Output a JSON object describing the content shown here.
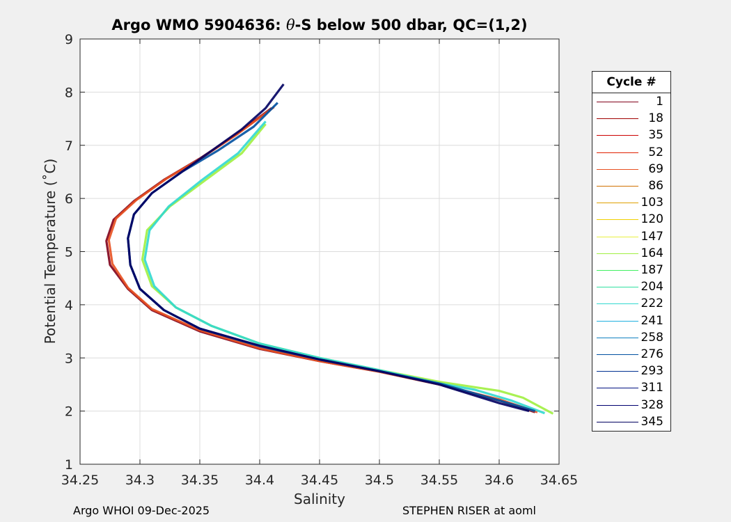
{
  "figure": {
    "title_prefix": "Argo WMO 5904636: ",
    "title_theta": "θ",
    "title_suffix": "-S below 500 dbar,  QC=(1,2)",
    "footer_left": "Argo WHOI 09-Dec-2025",
    "footer_right": "STEPHEN RISER at aoml"
  },
  "legend": {
    "title": "Cycle #",
    "entries": [
      {
        "label": "1",
        "color": "#80001a"
      },
      {
        "label": "18",
        "color": "#a00000"
      },
      {
        "label": "35",
        "color": "#cc0000"
      },
      {
        "label": "52",
        "color": "#e02000"
      },
      {
        "label": "69",
        "color": "#e85020"
      },
      {
        "label": "86",
        "color": "#d07000"
      },
      {
        "label": "103",
        "color": "#e0a000"
      },
      {
        "label": "120",
        "color": "#f0d000"
      },
      {
        "label": "147",
        "color": "#e8f040"
      },
      {
        "label": "164",
        "color": "#a0f040"
      },
      {
        "label": "187",
        "color": "#40f060"
      },
      {
        "label": "204",
        "color": "#30e0a0"
      },
      {
        "label": "222",
        "color": "#30d8d0"
      },
      {
        "label": "241",
        "color": "#20b0e0"
      },
      {
        "label": "258",
        "color": "#1080c0"
      },
      {
        "label": "276",
        "color": "#0050a0"
      },
      {
        "label": "293",
        "color": "#003090"
      },
      {
        "label": "311",
        "color": "#001080"
      },
      {
        "label": "328",
        "color": "#000070"
      },
      {
        "label": "345",
        "color": "#000060"
      }
    ]
  },
  "chart_data": {
    "type": "line",
    "title": "Argo WMO 5904636: θ-S below 500 dbar,  QC=(1,2)",
    "xlabel": "Salinity",
    "ylabel": "Potential Temperature (˚C)",
    "xlim": [
      34.25,
      34.65
    ],
    "ylim": [
      1,
      9
    ],
    "xticks": [
      "34.25",
      "34.3",
      "34.35",
      "34.4",
      "34.45",
      "34.5",
      "34.55",
      "34.6",
      "34.65"
    ],
    "yticks": [
      "1",
      "2",
      "3",
      "4",
      "5",
      "6",
      "7",
      "8",
      "9"
    ],
    "grid": true,
    "series": [
      {
        "name": "1",
        "x": [
          34.63,
          34.6,
          34.55,
          34.5,
          34.45,
          34.4,
          34.35,
          34.31,
          34.29,
          34.275,
          34.272,
          34.278,
          34.295,
          34.32,
          34.35,
          34.38,
          34.41
        ],
        "y": [
          1.98,
          2.2,
          2.5,
          2.74,
          2.94,
          3.17,
          3.5,
          3.9,
          4.3,
          4.75,
          5.2,
          5.6,
          5.95,
          6.35,
          6.75,
          7.2,
          7.7
        ]
      },
      {
        "name": "69",
        "x": [
          34.632,
          34.6,
          34.55,
          34.5,
          34.45,
          34.4,
          34.35,
          34.31,
          34.29,
          34.277,
          34.274,
          34.28,
          34.297,
          34.322,
          34.352,
          34.382,
          34.412
        ],
        "y": [
          1.98,
          2.22,
          2.5,
          2.74,
          2.94,
          3.18,
          3.52,
          3.92,
          4.32,
          4.77,
          5.22,
          5.62,
          5.97,
          6.37,
          6.77,
          7.22,
          7.72
        ]
      },
      {
        "name": "164",
        "x": [
          34.645,
          34.62,
          34.6,
          34.55,
          34.5,
          34.45,
          34.4,
          34.36,
          34.33,
          34.31,
          34.302,
          34.306,
          34.325,
          34.355,
          34.385,
          34.405
        ],
        "y": [
          1.95,
          2.25,
          2.38,
          2.55,
          2.77,
          3.0,
          3.27,
          3.6,
          3.95,
          4.35,
          4.85,
          5.4,
          5.85,
          6.35,
          6.85,
          7.4
        ]
      },
      {
        "name": "222",
        "x": [
          34.638,
          34.61,
          34.58,
          34.55,
          34.5,
          34.45,
          34.4,
          34.36,
          34.33,
          34.312,
          34.304,
          34.308,
          34.324,
          34.352,
          34.382,
          34.405
        ],
        "y": [
          1.96,
          2.2,
          2.4,
          2.52,
          2.77,
          3.0,
          3.27,
          3.6,
          3.95,
          4.35,
          4.85,
          5.4,
          5.85,
          6.35,
          6.85,
          7.45
        ]
      },
      {
        "name": "276",
        "x": [
          34.63,
          34.6,
          34.55,
          34.5,
          34.45,
          34.4,
          34.35,
          34.32,
          34.3,
          34.292,
          34.29,
          34.295,
          34.31,
          34.335,
          34.365,
          34.395,
          34.415
        ],
        "y": [
          2.0,
          2.2,
          2.52,
          2.75,
          2.97,
          3.22,
          3.55,
          3.9,
          4.3,
          4.75,
          5.25,
          5.7,
          6.1,
          6.5,
          6.9,
          7.35,
          7.8
        ]
      },
      {
        "name": "345",
        "x": [
          34.625,
          34.6,
          34.55,
          34.5,
          34.45,
          34.4,
          34.35,
          34.32,
          34.3,
          34.292,
          34.29,
          34.295,
          34.31,
          34.335,
          34.36,
          34.385,
          34.405,
          34.42
        ],
        "y": [
          2.0,
          2.15,
          2.5,
          2.75,
          2.97,
          3.23,
          3.55,
          3.9,
          4.3,
          4.75,
          5.25,
          5.7,
          6.1,
          6.5,
          6.9,
          7.3,
          7.7,
          8.15
        ]
      }
    ]
  }
}
